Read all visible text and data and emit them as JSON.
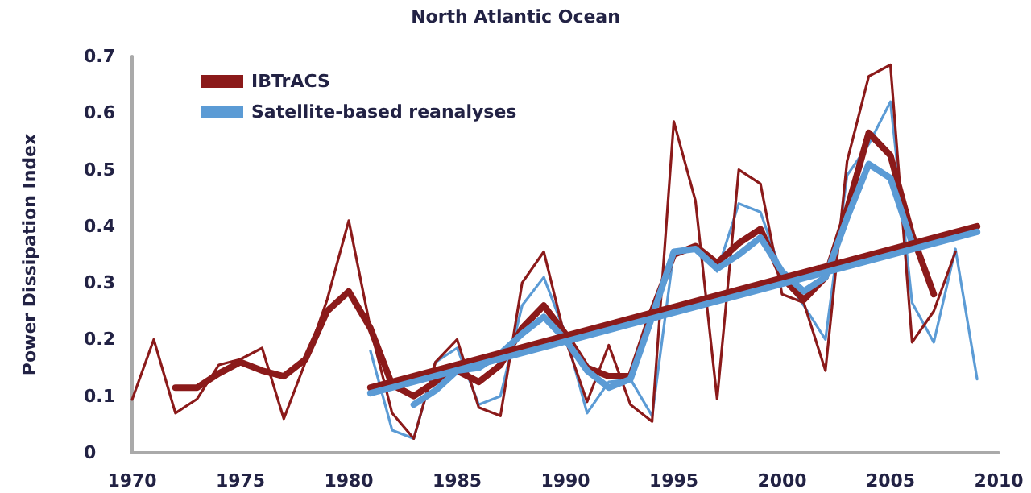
{
  "chart_data": {
    "type": "line",
    "title": "North Atlantic Ocean",
    "ylabel": "Power Dissipation Index",
    "xlim": [
      1970,
      2010
    ],
    "xticks": [
      1970,
      1975,
      1980,
      1985,
      1990,
      1995,
      2000,
      2005,
      2010
    ],
    "ylim": [
      0,
      0.7
    ],
    "yticks": [
      0,
      0.1,
      0.2,
      0.3,
      0.4,
      0.5,
      0.6,
      0.7
    ],
    "grid": false,
    "legend": "top left",
    "marker": "none",
    "line_style": "solid",
    "series": [
      {
        "color": "#8b1a1a",
        "x": [
          1970,
          1971,
          1972,
          1973,
          1974,
          1975,
          1976,
          1977,
          1978,
          1979,
          1980,
          1981,
          1982,
          1983,
          1984,
          1985,
          1986,
          1987,
          1988,
          1989,
          1990,
          1991,
          1992,
          1993,
          1994,
          1995,
          1996,
          1997,
          1998,
          1999,
          2000,
          2001,
          2002,
          2003,
          2004,
          2005,
          2006,
          2007,
          2008
        ],
        "values": [
          0.094,
          0.2,
          0.07,
          0.095,
          0.155,
          0.165,
          0.185,
          0.06,
          0.16,
          0.27,
          0.41,
          0.22,
          0.07,
          0.025,
          0.16,
          0.2,
          0.08,
          0.065,
          0.3,
          0.355,
          0.2,
          0.09,
          0.19,
          0.085,
          0.055,
          0.585,
          0.445,
          0.095,
          0.5,
          0.475,
          0.28,
          0.265,
          0.145,
          0.515,
          0.665,
          0.685,
          0.195,
          0.25,
          0.355
        ]
      },
      {
        "color": "#5b9bd5",
        "x": [
          1981,
          1982,
          1983,
          1984,
          1985,
          1986,
          1987,
          1988,
          1989,
          1990,
          1991,
          1992,
          1993,
          1994,
          1995,
          1996,
          1997,
          1998,
          1999,
          2000,
          2001,
          2002,
          2003,
          2004,
          2005,
          2006,
          2007,
          2008,
          2009
        ],
        "values": [
          0.18,
          0.04,
          0.025,
          0.16,
          0.185,
          0.085,
          0.1,
          0.26,
          0.31,
          0.21,
          0.07,
          0.125,
          0.13,
          0.065,
          0.355,
          0.365,
          0.32,
          0.44,
          0.425,
          0.315,
          0.26,
          0.2,
          0.49,
          0.545,
          0.62,
          0.265,
          0.195,
          0.36,
          0.13
        ]
      },
      {
        "name": "IBTrACS",
        "color": "#8b1a1a",
        "x": [
          1972,
          1973,
          1974,
          1975,
          1976,
          1977,
          1978,
          1979,
          1980,
          1981,
          1982,
          1983,
          1984,
          1985,
          1986,
          1987,
          1988,
          1989,
          1990,
          1991,
          1992,
          1993,
          1994,
          1995,
          1996,
          1997,
          1998,
          1999,
          2000,
          2001,
          2002,
          2003,
          2004,
          2005,
          2006,
          2007
        ],
        "values": [
          0.115,
          0.115,
          0.14,
          0.16,
          0.145,
          0.135,
          0.165,
          0.25,
          0.285,
          0.22,
          0.12,
          0.1,
          0.125,
          0.145,
          0.125,
          0.155,
          0.22,
          0.26,
          0.21,
          0.15,
          0.135,
          0.135,
          0.25,
          0.35,
          0.365,
          0.335,
          0.37,
          0.395,
          0.31,
          0.27,
          0.31,
          0.43,
          0.565,
          0.525,
          0.385,
          0.28
        ]
      },
      {
        "name": "Satellite-based reanalyses",
        "color": "#5b9bd5",
        "x": [
          1983,
          1984,
          1985,
          1986,
          1987,
          1988,
          1989,
          1990,
          1991,
          1992,
          1993,
          1994,
          1995,
          1996,
          1997,
          1998,
          1999,
          2000,
          2001,
          2002,
          2003,
          2004,
          2005,
          2006
        ],
        "values": [
          0.085,
          0.11,
          0.145,
          0.15,
          0.175,
          0.21,
          0.24,
          0.2,
          0.145,
          0.115,
          0.13,
          0.24,
          0.355,
          0.36,
          0.325,
          0.35,
          0.38,
          0.32,
          0.285,
          0.31,
          0.415,
          0.51,
          0.485,
          0.37
        ]
      },
      {
        "color": "#8b1a1a",
        "x": [
          1981,
          2009
        ],
        "values": [
          0.115,
          0.4
        ]
      },
      {
        "color": "#5b9bd5",
        "x": [
          1981,
          2009
        ],
        "values": [
          0.105,
          0.39
        ]
      }
    ]
  }
}
